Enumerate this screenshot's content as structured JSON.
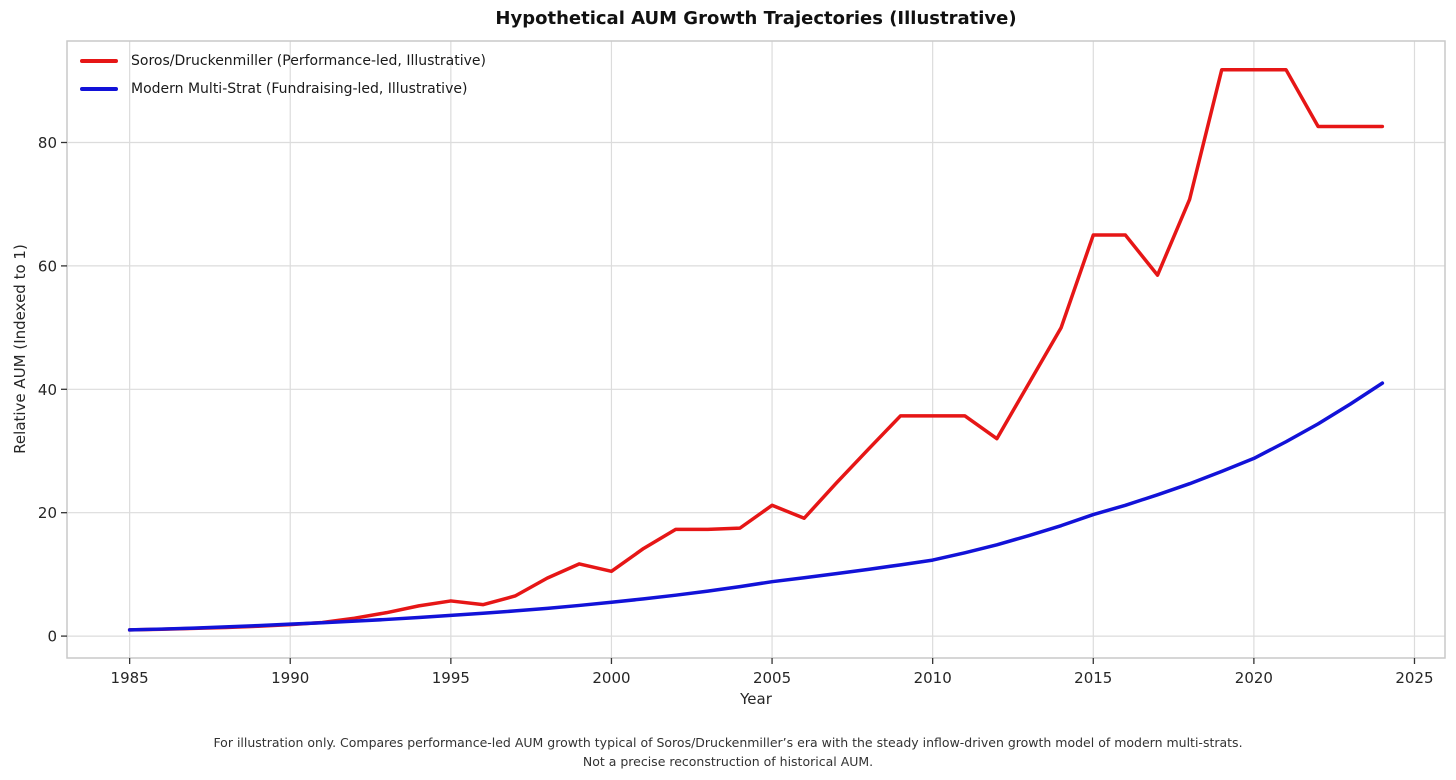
{
  "footnote": {
    "line1": "For illustration only. Compares performance-led AUM growth typical of Soros/Druckenmiller’s era with the steady inflow-driven growth model of modern multi-strats.",
    "line2": "Not a precise reconstruction of historical AUM."
  },
  "colors": {
    "grid": "#dcdcdc",
    "spine": "#c9c9c9",
    "tick": "#333333",
    "tick_label": "#262626",
    "title": "#111111",
    "footnote": "#333333",
    "series_red": "#e61616",
    "series_blue": "#1212d8"
  },
  "chart_data": {
    "type": "line",
    "title": "Hypothetical AUM Growth Trajectories (Illustrative)",
    "xlabel": "Year",
    "ylabel": "Relative AUM (Indexed to 1)",
    "x_ticks": [
      1985,
      1990,
      1995,
      2000,
      2005,
      2010,
      2015,
      2020,
      2025
    ],
    "y_ticks": [
      0,
      20,
      40,
      60,
      80
    ],
    "xlim": [
      1983.05,
      2025.95
    ],
    "ylim": [
      -3.55,
      96.45
    ],
    "grid": true,
    "legend_position": "upper left",
    "x": [
      1985,
      1986,
      1987,
      1988,
      1989,
      1990,
      1991,
      1992,
      1993,
      1994,
      1995,
      1996,
      1997,
      1998,
      1999,
      2000,
      2001,
      2002,
      2003,
      2004,
      2005,
      2006,
      2007,
      2008,
      2009,
      2010,
      2011,
      2012,
      2013,
      2014,
      2015,
      2016,
      2017,
      2018,
      2019,
      2020,
      2021,
      2022,
      2023,
      2024
    ],
    "series": [
      {
        "name": "Soros/Druckenmiller (Performance-led, Illustrative)",
        "color": "#e61616",
        "values": [
          1.0,
          1.1,
          1.25,
          1.4,
          1.6,
          1.85,
          2.2,
          2.9,
          3.8,
          4.9,
          5.7,
          5.1,
          6.5,
          9.4,
          11.7,
          10.5,
          14.2,
          17.3,
          17.3,
          17.5,
          21.2,
          19.1,
          24.8,
          30.3,
          35.7,
          35.7,
          35.7,
          32.0,
          41.0,
          50.0,
          65.0,
          65.0,
          58.5,
          70.8,
          91.8,
          91.8,
          91.8,
          82.6,
          82.6,
          82.6
        ]
      },
      {
        "name": "Modern Multi-Strat (Fundraising-led, Illustrative)",
        "color": "#1212d8",
        "values": [
          1.0,
          1.14,
          1.3,
          1.49,
          1.7,
          1.95,
          2.17,
          2.42,
          2.7,
          3.01,
          3.35,
          3.7,
          4.08,
          4.5,
          4.97,
          5.48,
          6.03,
          6.63,
          7.29,
          8.02,
          8.82,
          9.45,
          10.12,
          10.82,
          11.55,
          12.32,
          13.5,
          14.8,
          16.3,
          17.9,
          19.7,
          21.2,
          22.9,
          24.7,
          26.7,
          28.8,
          31.5,
          34.4,
          37.6,
          41.0
        ]
      }
    ]
  }
}
